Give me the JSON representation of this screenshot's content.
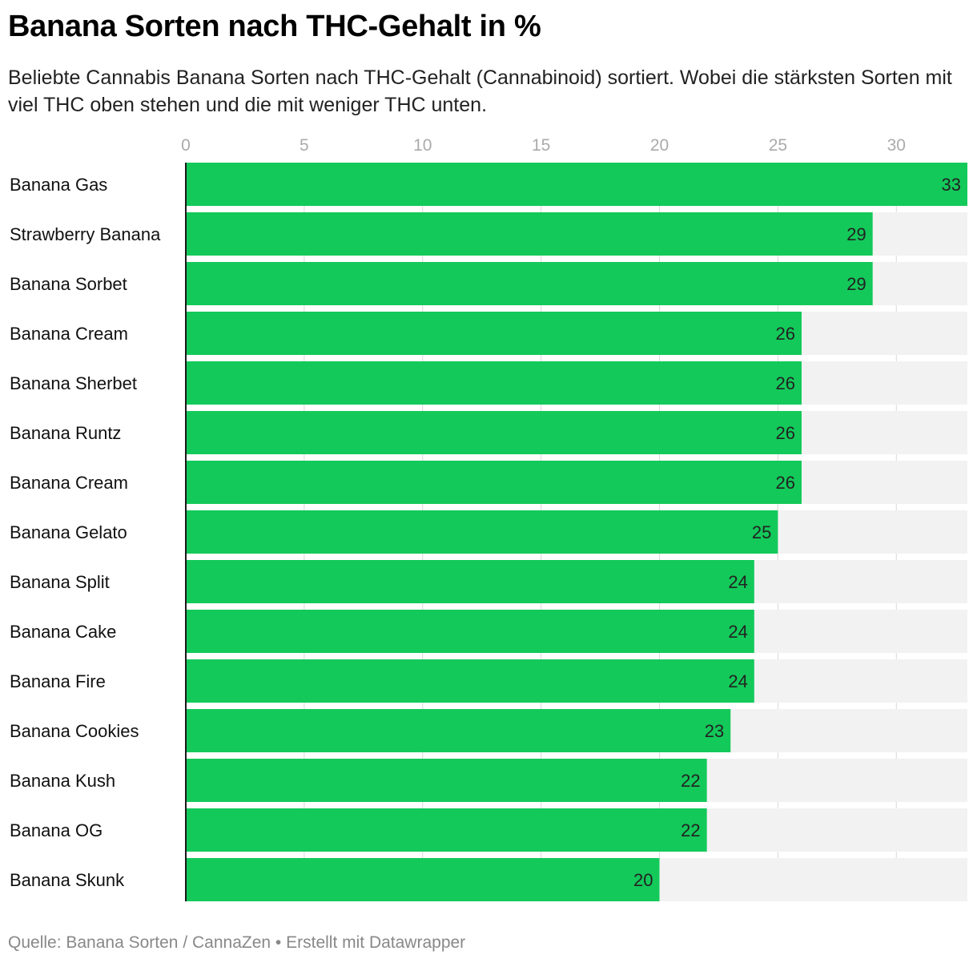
{
  "title": "Banana Sorten nach THC-Gehalt in %",
  "subtitle": "Beliebte Cannabis Banana Sorten nach THC-Gehalt (Cannabinoid) sortiert. Wobei die stärksten Sorten mit viel THC oben stehen und die mit weniger THC unten.",
  "footer": {
    "source": "Quelle: Banana Sorten / CannaZen",
    "separator": "•",
    "credit": "Erstellt mit Datawrapper"
  },
  "colors": {
    "bar": "#13c95a",
    "track": "#f2f2f2",
    "grid": "#d9d9d9",
    "axis": "#1a1a1a"
  },
  "chart_data": {
    "type": "bar",
    "orientation": "horizontal",
    "title": "Banana Sorten nach THC-Gehalt in %",
    "xlim": [
      0,
      33
    ],
    "x_ticks": [
      0,
      5,
      10,
      15,
      20,
      25,
      30
    ],
    "grid": true,
    "categories": [
      "Banana Gas",
      "Strawberry Banana",
      "Banana Sorbet",
      "Banana Cream",
      "Banana Sherbet",
      "Banana Runtz",
      "Banana Cream",
      "Banana Gelato",
      "Banana Split",
      "Banana Cake",
      "Banana Fire",
      "Banana Cookies",
      "Banana Kush",
      "Banana OG",
      "Banana Skunk"
    ],
    "values": [
      33,
      29,
      29,
      26,
      26,
      26,
      26,
      25,
      24,
      24,
      24,
      23,
      22,
      22,
      20
    ]
  }
}
